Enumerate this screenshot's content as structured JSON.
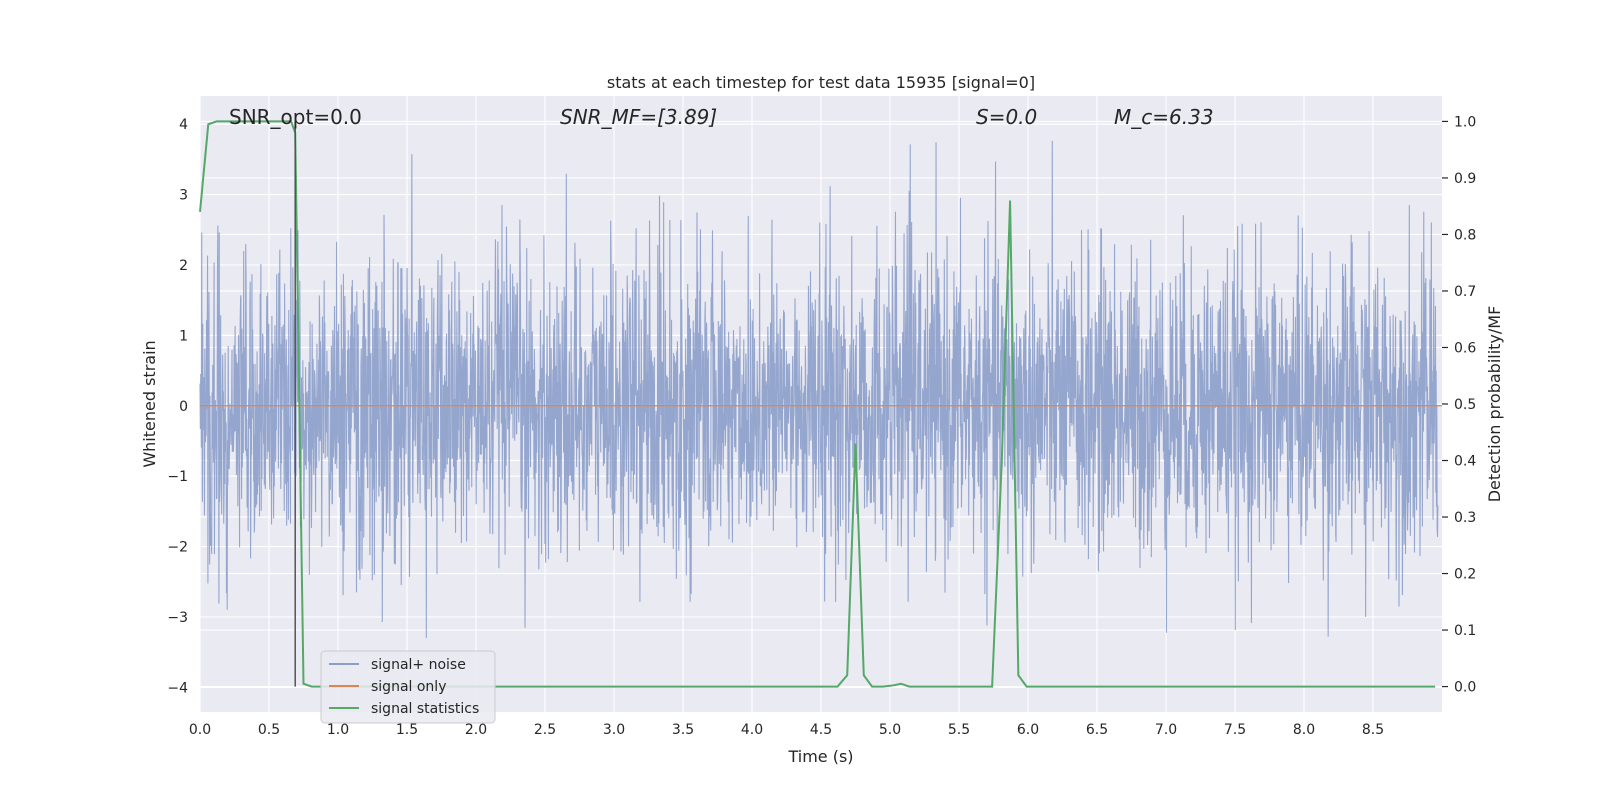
{
  "chart_data": {
    "type": "line",
    "title": "stats at each timestep for test data 15935 [signal=0]",
    "xlabel": "Time (s)",
    "ylabel_left": "Whitened strain",
    "ylabel_right": "Detection probability/MF",
    "xlim": [
      0.0,
      9.0
    ],
    "ylim_left": [
      -4.35,
      4.4
    ],
    "ylim_right": [
      -0.045,
      1.045
    ],
    "xticks": [
      "0.0",
      "0.5",
      "1.0",
      "1.5",
      "2.0",
      "2.5",
      "3.0",
      "3.5",
      "4.0",
      "4.5",
      "5.0",
      "5.5",
      "6.0",
      "6.5",
      "7.0",
      "7.5",
      "8.0",
      "8.5"
    ],
    "yticks_left": [
      "4",
      "3",
      "2",
      "1",
      "0",
      "−1",
      "−2",
      "−3",
      "−4"
    ],
    "yticks_right": [
      "1.0",
      "0.9",
      "0.8",
      "0.7",
      "0.6",
      "0.5",
      "0.4",
      "0.3",
      "0.2",
      "0.1",
      "0.0"
    ],
    "grid": true,
    "annotations": [
      {
        "text": "SNR_opt=0.0",
        "x": 0.2
      },
      {
        "text": "SNR_MF=[3.89]",
        "x": 2.6
      },
      {
        "text": "S=0.0",
        "x": 5.6
      },
      {
        "text": "M_c=6.33",
        "x": 6.6
      }
    ],
    "vline_x": 0.69,
    "legend": {
      "placement": "lower-left",
      "entries": [
        "signal+ noise",
        "signal only",
        "signal statistics"
      ]
    },
    "colors": {
      "noise": "#8c9fca",
      "signal": "#dd8452",
      "stats": "#55a868",
      "vline": "#555555",
      "background": "#eaeaf2"
    },
    "series": [
      {
        "name": "signal+ noise",
        "axis": "left",
        "description_values": "random noise, amplitude roughly within [-3.6, 4.0]",
        "envelope": {
          "sigma": 1.0,
          "max": 4.0,
          "min": -3.6
        }
      },
      {
        "name": "signal only",
        "axis": "left",
        "x": [
          0.0,
          9.0
        ],
        "values": [
          0.0,
          0.0
        ]
      },
      {
        "name": "signal statistics",
        "axis": "right",
        "x": [
          0.0,
          0.06,
          0.12,
          0.18,
          0.24,
          0.3,
          0.36,
          0.42,
          0.48,
          0.54,
          0.6,
          0.66,
          0.69,
          0.75,
          0.81,
          1.0,
          2.0,
          3.0,
          4.0,
          4.5,
          4.62,
          4.69,
          4.75,
          4.81,
          4.87,
          4.95,
          5.02,
          5.08,
          5.14,
          5.3,
          5.5,
          5.74,
          5.81,
          5.87,
          5.93,
          5.99,
          6.5,
          7.0,
          8.0,
          8.95
        ],
        "values": [
          0.84,
          0.995,
          1.0,
          1.0,
          1.0,
          1.0,
          1.0,
          1.0,
          1.0,
          1.0,
          1.0,
          1.0,
          0.98,
          0.005,
          0.0,
          0.0,
          0.0,
          0.0,
          0.0,
          0.0,
          0.0,
          0.02,
          0.43,
          0.02,
          0.0,
          0.0,
          0.002,
          0.005,
          0.0,
          0.0,
          0.0,
          0.0,
          0.4,
          0.86,
          0.02,
          0.0,
          0.0,
          0.0,
          0.0,
          0.0
        ]
      }
    ]
  }
}
